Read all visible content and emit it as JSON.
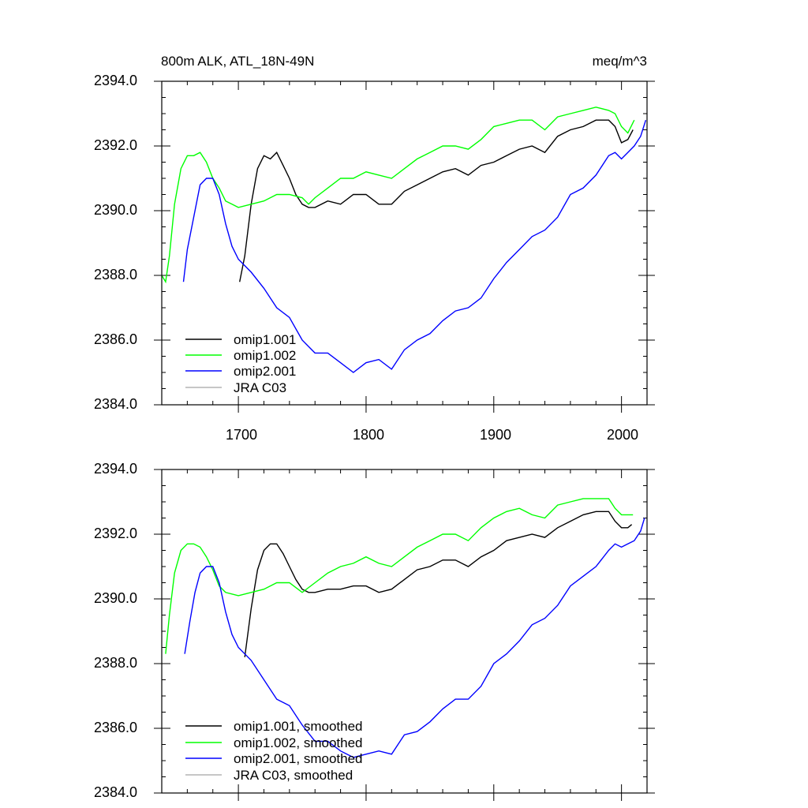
{
  "chart_data": [
    {
      "type": "line",
      "title_left": "800m ALK, ATL_18N-49N",
      "title_right": "meq/m^3",
      "xlim": [
        1640,
        2020
      ],
      "ylim": [
        2384,
        2394
      ],
      "yticks": [
        "2384.0",
        "2386.0",
        "2388.0",
        "2390.0",
        "2392.0",
        "2394.0"
      ],
      "xticks": [
        "1700",
        "1800",
        "1900",
        "2000"
      ],
      "legend_position": "bottom-left",
      "series": [
        {
          "name": "omip1.001",
          "color": "#000000",
          "x": [
            1701,
            1705,
            1710,
            1715,
            1720,
            1725,
            1730,
            1735,
            1740,
            1745,
            1750,
            1755,
            1760,
            1770,
            1780,
            1790,
            1800,
            1810,
            1820,
            1830,
            1840,
            1850,
            1860,
            1870,
            1880,
            1890,
            1900,
            1910,
            1920,
            1930,
            1940,
            1950,
            1960,
            1970,
            1980,
            1990,
            1995,
            2000,
            2005,
            2009
          ],
          "values": [
            2387.8,
            2388.6,
            2390.2,
            2391.3,
            2391.7,
            2391.6,
            2391.8,
            2391.4,
            2391.0,
            2390.5,
            2390.2,
            2390.1,
            2390.1,
            2390.3,
            2390.2,
            2390.5,
            2390.5,
            2390.2,
            2390.2,
            2390.6,
            2390.8,
            2391.0,
            2391.2,
            2391.3,
            2391.1,
            2391.4,
            2391.5,
            2391.7,
            2391.9,
            2392.0,
            2391.8,
            2392.3,
            2392.5,
            2392.6,
            2392.8,
            2392.8,
            2392.6,
            2392.1,
            2392.2,
            2392.5
          ]
        },
        {
          "name": "omip1.002",
          "color": "#00ff00",
          "x": [
            1640,
            1643,
            1646,
            1650,
            1655,
            1660,
            1665,
            1670,
            1675,
            1680,
            1685,
            1690,
            1695,
            1700,
            1710,
            1720,
            1730,
            1740,
            1750,
            1755,
            1760,
            1770,
            1780,
            1790,
            1800,
            1810,
            1820,
            1830,
            1840,
            1850,
            1860,
            1870,
            1880,
            1890,
            1900,
            1910,
            1920,
            1930,
            1940,
            1950,
            1960,
            1970,
            1980,
            1990,
            1995,
            2000,
            2005,
            2010
          ],
          "values": [
            2388.0,
            2387.8,
            2388.6,
            2390.2,
            2391.3,
            2391.7,
            2391.7,
            2391.8,
            2391.5,
            2391.0,
            2390.7,
            2390.3,
            2390.2,
            2390.1,
            2390.2,
            2390.3,
            2390.5,
            2390.5,
            2390.4,
            2390.2,
            2390.4,
            2390.7,
            2391.0,
            2391.0,
            2391.2,
            2391.1,
            2391.0,
            2391.3,
            2391.6,
            2391.8,
            2392.0,
            2392.0,
            2391.9,
            2392.2,
            2392.6,
            2392.7,
            2392.8,
            2392.8,
            2392.5,
            2392.9,
            2393.0,
            2393.1,
            2393.2,
            2393.1,
            2393.0,
            2392.6,
            2392.4,
            2392.8
          ]
        },
        {
          "name": "omip2.001",
          "color": "#0000ff",
          "x": [
            1657,
            1660,
            1665,
            1670,
            1675,
            1680,
            1685,
            1690,
            1695,
            1700,
            1710,
            1720,
            1730,
            1740,
            1750,
            1760,
            1770,
            1780,
            1790,
            1800,
            1810,
            1820,
            1830,
            1840,
            1850,
            1860,
            1870,
            1880,
            1890,
            1900,
            1910,
            1920,
            1930,
            1940,
            1950,
            1960,
            1970,
            1980,
            1990,
            1995,
            2000,
            2005,
            2010,
            2015,
            2019
          ],
          "values": [
            2387.8,
            2388.8,
            2389.8,
            2390.8,
            2391.0,
            2391.0,
            2390.5,
            2389.6,
            2388.9,
            2388.5,
            2388.1,
            2387.6,
            2387.0,
            2386.7,
            2386.0,
            2385.6,
            2385.6,
            2385.3,
            2385.0,
            2385.3,
            2385.4,
            2385.1,
            2385.7,
            2386.0,
            2386.2,
            2386.6,
            2386.9,
            2387.0,
            2387.3,
            2387.9,
            2388.4,
            2388.8,
            2389.2,
            2389.4,
            2389.8,
            2390.5,
            2390.7,
            2391.1,
            2391.7,
            2391.8,
            2391.6,
            2391.8,
            2392.0,
            2392.3,
            2392.8
          ]
        },
        {
          "name": "JRA C03",
          "color": "#b4b4b4",
          "x": [],
          "values": []
        }
      ]
    },
    {
      "type": "line",
      "xlim": [
        1640,
        2020
      ],
      "ylim": [
        2384,
        2394
      ],
      "yticks": [
        "2384.0",
        "2386.0",
        "2388.0",
        "2390.0",
        "2392.0",
        "2394.0"
      ],
      "legend_position": "bottom-left",
      "series": [
        {
          "name": "omip1.001, smoothed",
          "color": "#000000",
          "x": [
            1705,
            1710,
            1715,
            1720,
            1725,
            1730,
            1735,
            1740,
            1745,
            1750,
            1755,
            1760,
            1770,
            1780,
            1790,
            1800,
            1810,
            1820,
            1830,
            1840,
            1850,
            1860,
            1870,
            1880,
            1890,
            1900,
            1910,
            1920,
            1930,
            1940,
            1950,
            1960,
            1970,
            1980,
            1990,
            1995,
            2000,
            2005,
            2008
          ],
          "values": [
            2388.2,
            2389.7,
            2390.9,
            2391.5,
            2391.7,
            2391.7,
            2391.4,
            2391.0,
            2390.6,
            2390.3,
            2390.2,
            2390.2,
            2390.3,
            2390.3,
            2390.4,
            2390.4,
            2390.2,
            2390.3,
            2390.6,
            2390.9,
            2391.0,
            2391.2,
            2391.2,
            2391.0,
            2391.3,
            2391.5,
            2391.8,
            2391.9,
            2392.0,
            2391.9,
            2392.2,
            2392.4,
            2392.6,
            2392.7,
            2392.7,
            2392.4,
            2392.2,
            2392.2,
            2392.3
          ]
        },
        {
          "name": "omip1.002, smoothed",
          "color": "#00ff00",
          "x": [
            1643,
            1646,
            1650,
            1655,
            1660,
            1665,
            1670,
            1675,
            1680,
            1685,
            1690,
            1700,
            1710,
            1720,
            1730,
            1740,
            1750,
            1760,
            1770,
            1780,
            1790,
            1800,
            1810,
            1820,
            1830,
            1840,
            1850,
            1860,
            1870,
            1880,
            1890,
            1900,
            1910,
            1920,
            1930,
            1940,
            1950,
            1960,
            1970,
            1980,
            1990,
            1995,
            2000,
            2005,
            2009
          ],
          "values": [
            2388.3,
            2389.5,
            2390.8,
            2391.5,
            2391.7,
            2391.7,
            2391.6,
            2391.3,
            2390.9,
            2390.4,
            2390.2,
            2390.1,
            2390.2,
            2390.3,
            2390.5,
            2390.5,
            2390.2,
            2390.5,
            2390.8,
            2391.0,
            2391.1,
            2391.3,
            2391.1,
            2391.0,
            2391.3,
            2391.6,
            2391.8,
            2392.0,
            2392.0,
            2391.8,
            2392.2,
            2392.5,
            2392.7,
            2392.8,
            2392.6,
            2392.5,
            2392.9,
            2393.0,
            2393.1,
            2393.1,
            2393.1,
            2392.8,
            2392.6,
            2392.6,
            2392.6
          ]
        },
        {
          "name": "omip2.001, smoothed",
          "color": "#0000ff",
          "x": [
            1658,
            1662,
            1666,
            1670,
            1675,
            1680,
            1685,
            1690,
            1695,
            1700,
            1710,
            1720,
            1730,
            1740,
            1750,
            1760,
            1770,
            1780,
            1790,
            1800,
            1810,
            1820,
            1830,
            1840,
            1850,
            1860,
            1870,
            1880,
            1890,
            1900,
            1910,
            1920,
            1930,
            1940,
            1950,
            1960,
            1970,
            1980,
            1990,
            1995,
            2000,
            2005,
            2010,
            2015,
            2018
          ],
          "values": [
            2388.3,
            2389.3,
            2390.2,
            2390.8,
            2391.0,
            2391.0,
            2390.5,
            2389.6,
            2388.9,
            2388.5,
            2388.1,
            2387.5,
            2386.9,
            2386.7,
            2386.1,
            2385.6,
            2385.6,
            2385.3,
            2385.1,
            2385.2,
            2385.3,
            2385.2,
            2385.8,
            2385.9,
            2386.2,
            2386.6,
            2386.9,
            2386.9,
            2387.3,
            2388.0,
            2388.3,
            2388.7,
            2389.2,
            2389.4,
            2389.8,
            2390.4,
            2390.7,
            2391.0,
            2391.5,
            2391.7,
            2391.6,
            2391.7,
            2391.8,
            2392.1,
            2392.5
          ]
        },
        {
          "name": "JRA C03, smoothed",
          "color": "#b4b4b4",
          "x": [],
          "values": []
        }
      ]
    }
  ]
}
